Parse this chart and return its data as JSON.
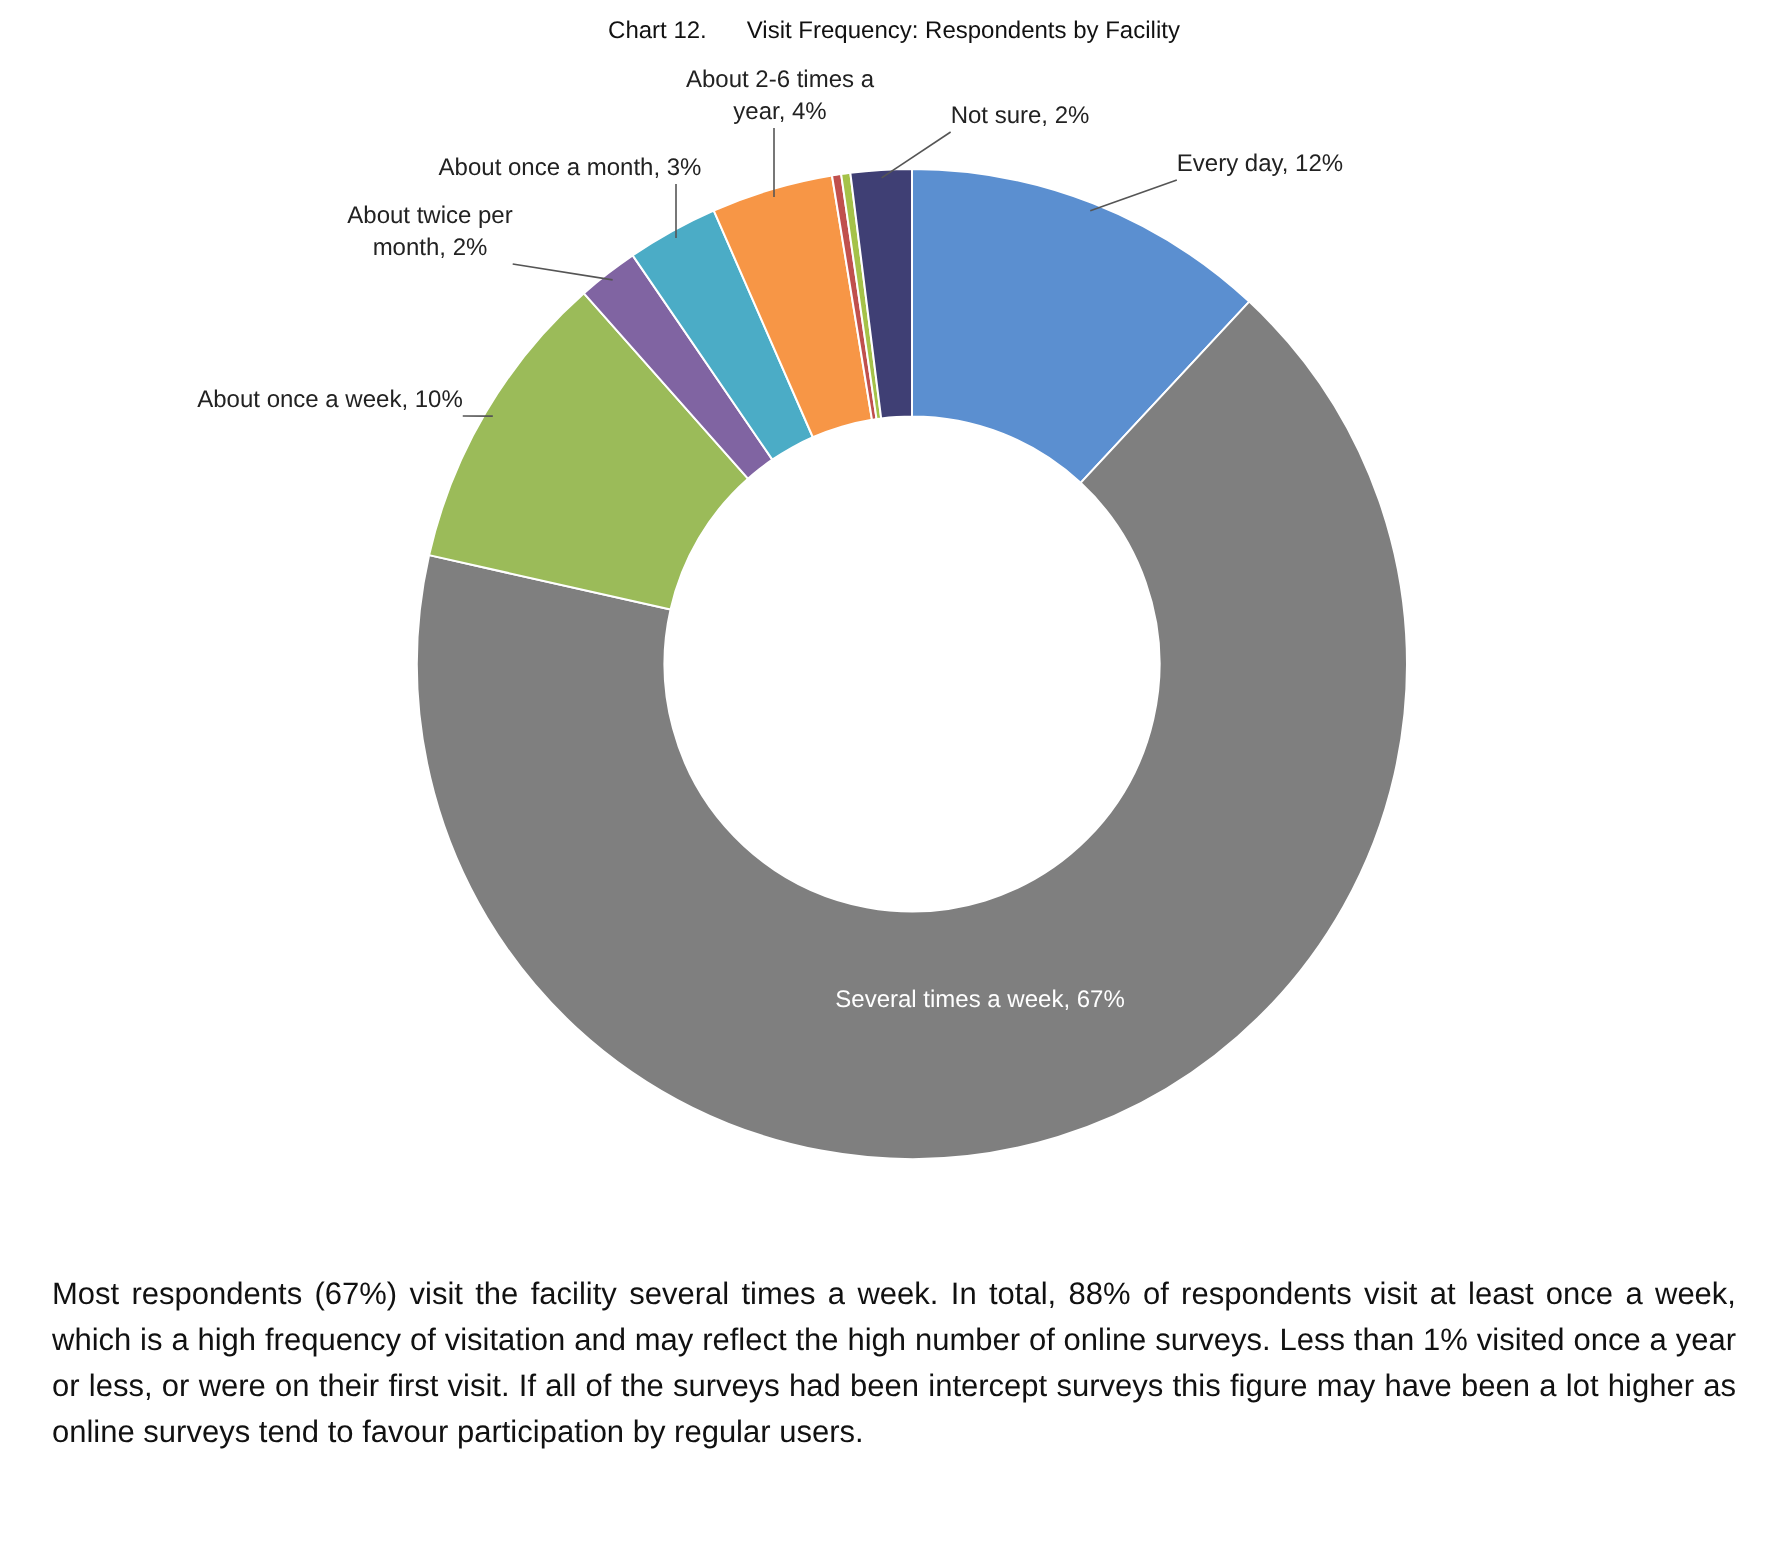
{
  "chart_data": {
    "type": "donut",
    "title": "Chart 12.      Visit Frequency: Respondents by Facility",
    "categories": [
      "Every day",
      "Several times a week",
      "About once a week",
      "About twice per month",
      "About once a month",
      "About 2-6 times a year",
      null,
      null,
      "Not sure"
    ],
    "values": [
      12,
      67,
      10,
      2,
      3,
      4,
      0.3,
      0.3,
      2
    ],
    "value_labels": [
      "12%",
      "67%",
      "10%",
      "2%",
      "3%",
      "4%",
      null,
      null,
      "2%"
    ],
    "colors": [
      "#5b8fd0",
      "#7f7f7f",
      "#9bbb59",
      "#8064a2",
      "#4bacc6",
      "#f79646",
      "#c0504d",
      "#a5c249",
      "#3f3f74"
    ],
    "legend": false,
    "annotations": [
      "Most respondents (67%) visit the facility several times a week. In total, 88% of respondents visit at least once a week, which is a high frequency of visitation and may reflect the high number of online surveys. Less than 1% visited once a year or less, or were on their first visit. If all of the surveys had been intercept surveys this figure may have been a lot higher as online surveys tend to favour participation by regular users."
    ]
  }
}
